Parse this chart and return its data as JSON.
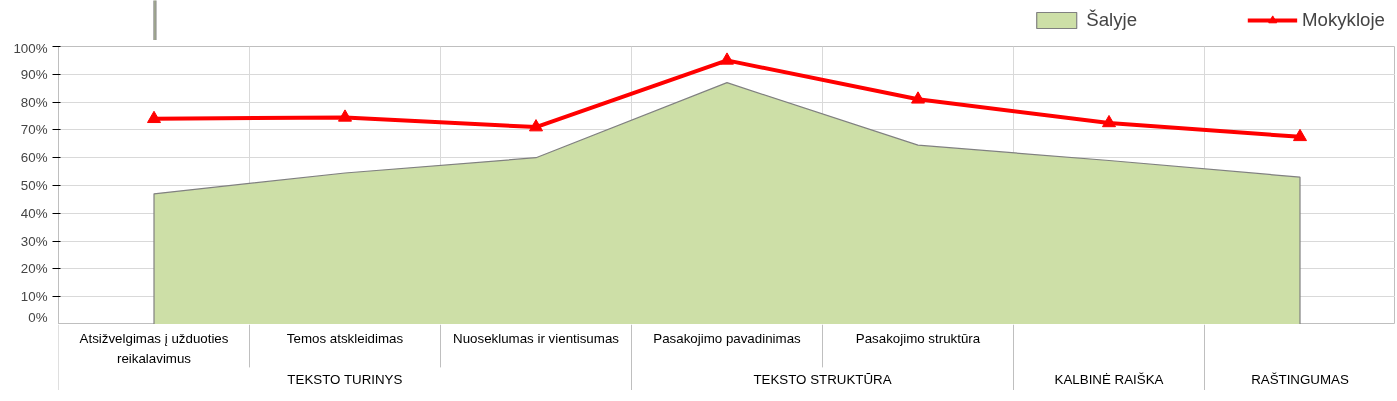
{
  "chart_data": {
    "type": "line",
    "categories": [
      "Atsižvelgimas į užduoties reikalavimus",
      "Temos atskleidimas",
      "Nuoseklumas ir vientisumas",
      "Pasakojimo pavadinimas",
      "Pasakojimo struktūra",
      null,
      null
    ],
    "series": [
      {
        "name": "Šalyje",
        "type": "area",
        "color": "#cddfa7",
        "values": [
          47,
          54.5,
          60,
          87,
          64.5,
          59,
          53
        ]
      },
      {
        "name": "Mokykloje",
        "type": "line",
        "color": "#ff0000",
        "marker": "triangle",
        "values": [
          74,
          74.5,
          71,
          95,
          81,
          72.5,
          67.5
        ]
      }
    ],
    "annotations": [
      "TEKSTO TURINYS",
      "TEKSTO STRUKTŪRA",
      "KALBINĖ RAIŠKA",
      "RAŠTINGUMAS"
    ],
    "ylim": [
      0,
      100
    ],
    "yticks": [
      {
        "value": 0,
        "label": "0%"
      },
      {
        "value": 10,
        "label": "10%"
      },
      {
        "value": 20,
        "label": "20%"
      },
      {
        "value": 30,
        "label": "30%"
      },
      {
        "value": 40,
        "label": "40%"
      },
      {
        "value": 50,
        "label": "50%"
      },
      {
        "value": 60,
        "label": "60%"
      },
      {
        "value": 70,
        "label": "70%"
      },
      {
        "value": 80,
        "label": "80%"
      },
      {
        "value": 90,
        "label": "90%"
      },
      {
        "value": 100,
        "label": "100%"
      }
    ],
    "grid": true,
    "legend": "top right"
  }
}
